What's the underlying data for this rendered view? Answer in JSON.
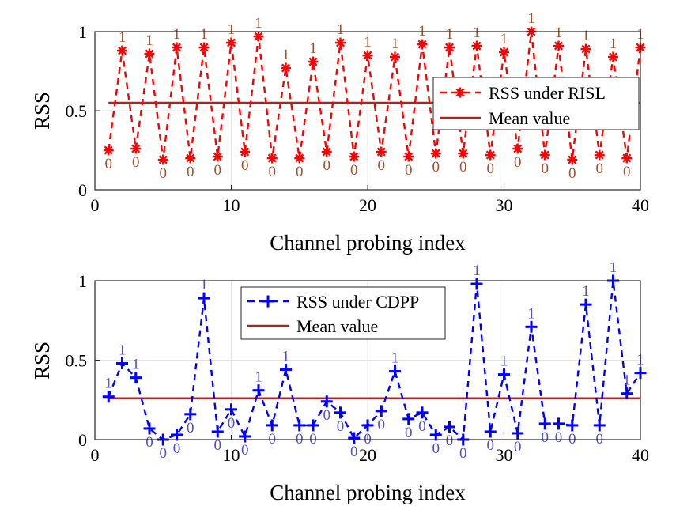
{
  "chart_data": [
    {
      "type": "line",
      "xlabel": "Channel probing index",
      "ylabel": "RSS",
      "xlim": [
        0,
        40
      ],
      "ylim": [
        0,
        1
      ],
      "xticks": [
        "0",
        "10",
        "20",
        "30",
        "40"
      ],
      "yticks": [
        "0",
        "0.5",
        "1"
      ],
      "grid": true,
      "legend_position": "center-right",
      "series": [
        {
          "name": "RSS under RISL",
          "color": "#ff0000",
          "style": "dashed",
          "marker": "asterisk",
          "x": [
            1,
            2,
            3,
            4,
            5,
            6,
            7,
            8,
            9,
            10,
            11,
            12,
            13,
            14,
            15,
            16,
            17,
            18,
            19,
            20,
            21,
            22,
            23,
            24,
            25,
            26,
            27,
            28,
            29,
            30,
            31,
            32,
            33,
            34,
            35,
            36,
            37,
            38,
            39,
            40
          ],
          "values": [
            0.25,
            0.88,
            0.26,
            0.86,
            0.19,
            0.9,
            0.2,
            0.9,
            0.21,
            0.93,
            0.24,
            0.97,
            0.2,
            0.77,
            0.2,
            0.81,
            0.24,
            0.93,
            0.21,
            0.85,
            0.24,
            0.84,
            0.21,
            0.92,
            0.23,
            0.9,
            0.23,
            0.91,
            0.22,
            0.87,
            0.26,
            1.0,
            0.22,
            0.91,
            0.19,
            0.89,
            0.22,
            0.84,
            0.2,
            0.9
          ],
          "bit_labels": [
            "0",
            "1",
            "0",
            "1",
            "0",
            "1",
            "0",
            "1",
            "0",
            "1",
            "0",
            "1",
            "0",
            "1",
            "0",
            "1",
            "0",
            "1",
            "0",
            "1",
            "0",
            "1",
            "0",
            "1",
            "0",
            "1",
            "0",
            "1",
            "0",
            "1",
            "0",
            "1",
            "0",
            "1",
            "0",
            "1",
            "0",
            "1",
            "0",
            "1"
          ]
        },
        {
          "name": "Mean value",
          "color": "#b22222",
          "style": "solid",
          "x": [
            1,
            40
          ],
          "values": [
            0.55,
            0.55
          ]
        }
      ]
    },
    {
      "type": "line",
      "xlabel": "Channel probing index",
      "ylabel": "RSS",
      "xlim": [
        0,
        40
      ],
      "ylim": [
        0,
        1
      ],
      "xticks": [
        "0",
        "10",
        "20",
        "30",
        "40"
      ],
      "yticks": [
        "0",
        "0.5",
        "1"
      ],
      "grid": true,
      "legend_position": "top-center",
      "series": [
        {
          "name": "RSS under CDPP",
          "color": "#0000ff",
          "style": "dashed",
          "marker": "plus",
          "x": [
            1,
            2,
            3,
            4,
            5,
            6,
            7,
            8,
            9,
            10,
            11,
            12,
            13,
            14,
            15,
            16,
            17,
            18,
            19,
            20,
            21,
            22,
            23,
            24,
            25,
            26,
            27,
            28,
            29,
            30,
            31,
            32,
            33,
            34,
            35,
            36,
            37,
            38,
            39,
            40
          ],
          "values": [
            0.27,
            0.48,
            0.39,
            0.07,
            0.0,
            0.03,
            0.16,
            0.89,
            0.05,
            0.19,
            0.02,
            0.31,
            0.09,
            0.44,
            0.09,
            0.09,
            0.24,
            0.17,
            0.01,
            0.09,
            0.18,
            0.43,
            0.13,
            0.17,
            0.03,
            0.08,
            0.0,
            0.98,
            0.05,
            0.41,
            0.04,
            0.71,
            0.1,
            0.1,
            0.09,
            0.85,
            0.09,
            1.0,
            0.29,
            0.42
          ],
          "bit_labels": [
            "1",
            "1",
            "1",
            "0",
            "0",
            "0",
            "0",
            "1",
            "0",
            "0",
            "0",
            "1",
            "0",
            "1",
            "0",
            "0",
            "0",
            "0",
            "0",
            "0",
            "0",
            "1",
            "0",
            "0",
            "0",
            "0",
            "0",
            "1",
            "0",
            "1",
            "0",
            "1",
            "0",
            "0",
            "0",
            "1",
            "0",
            "1",
            "1",
            "1"
          ]
        },
        {
          "name": "Mean value",
          "color": "#b22222",
          "style": "solid",
          "x": [
            1,
            40
          ],
          "values": [
            0.26,
            0.26
          ]
        }
      ]
    }
  ]
}
